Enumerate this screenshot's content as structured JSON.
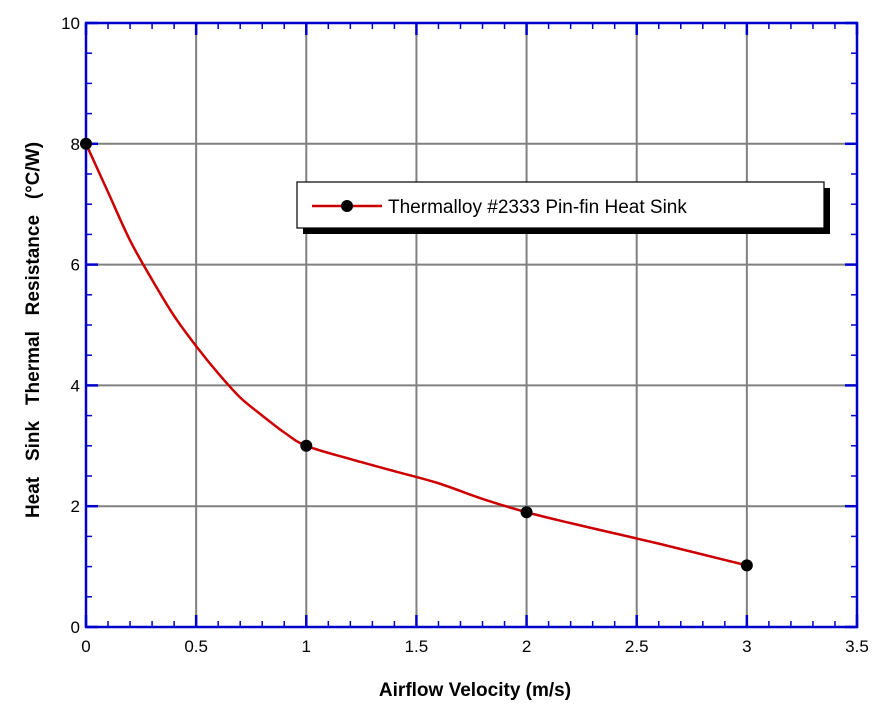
{
  "chart_data": {
    "type": "line",
    "xlabel": "Airflow Velocity (m/s)",
    "ylabel": "Heat   Sink   Thermal   Resistance   (°C/W)",
    "xlim": [
      0,
      3.5
    ],
    "ylim": [
      0,
      10
    ],
    "x_ticks": [
      "0",
      "0.5",
      "1",
      "1.5",
      "2",
      "2.5",
      "3",
      "3.5"
    ],
    "y_ticks": [
      "0",
      "2",
      "4",
      "6",
      "8",
      "10"
    ],
    "grid": true,
    "legend_position": "top-right",
    "series": [
      {
        "name": "Thermalloy  #2333  Pin-fin  Heat  Sink",
        "color": "#cc0000",
        "marker_color": "#000000",
        "markers": [
          {
            "x": 0,
            "y": 8.0
          },
          {
            "x": 1,
            "y": 3.0
          },
          {
            "x": 2,
            "y": 1.9
          },
          {
            "x": 3,
            "y": 1.02
          }
        ],
        "curve": [
          {
            "x": 0.0,
            "y": 8.0
          },
          {
            "x": 0.1,
            "y": 7.2
          },
          {
            "x": 0.2,
            "y": 6.4
          },
          {
            "x": 0.3,
            "y": 5.75
          },
          {
            "x": 0.4,
            "y": 5.15
          },
          {
            "x": 0.5,
            "y": 4.65
          },
          {
            "x": 0.6,
            "y": 4.2
          },
          {
            "x": 0.7,
            "y": 3.8
          },
          {
            "x": 0.8,
            "y": 3.5
          },
          {
            "x": 0.9,
            "y": 3.22
          },
          {
            "x": 1.0,
            "y": 3.0
          },
          {
            "x": 1.2,
            "y": 2.78
          },
          {
            "x": 1.4,
            "y": 2.58
          },
          {
            "x": 1.6,
            "y": 2.38
          },
          {
            "x": 1.8,
            "y": 2.12
          },
          {
            "x": 2.0,
            "y": 1.9
          },
          {
            "x": 2.2,
            "y": 1.72
          },
          {
            "x": 2.4,
            "y": 1.55
          },
          {
            "x": 2.6,
            "y": 1.38
          },
          {
            "x": 2.8,
            "y": 1.2
          },
          {
            "x": 3.0,
            "y": 1.02
          }
        ]
      }
    ]
  }
}
